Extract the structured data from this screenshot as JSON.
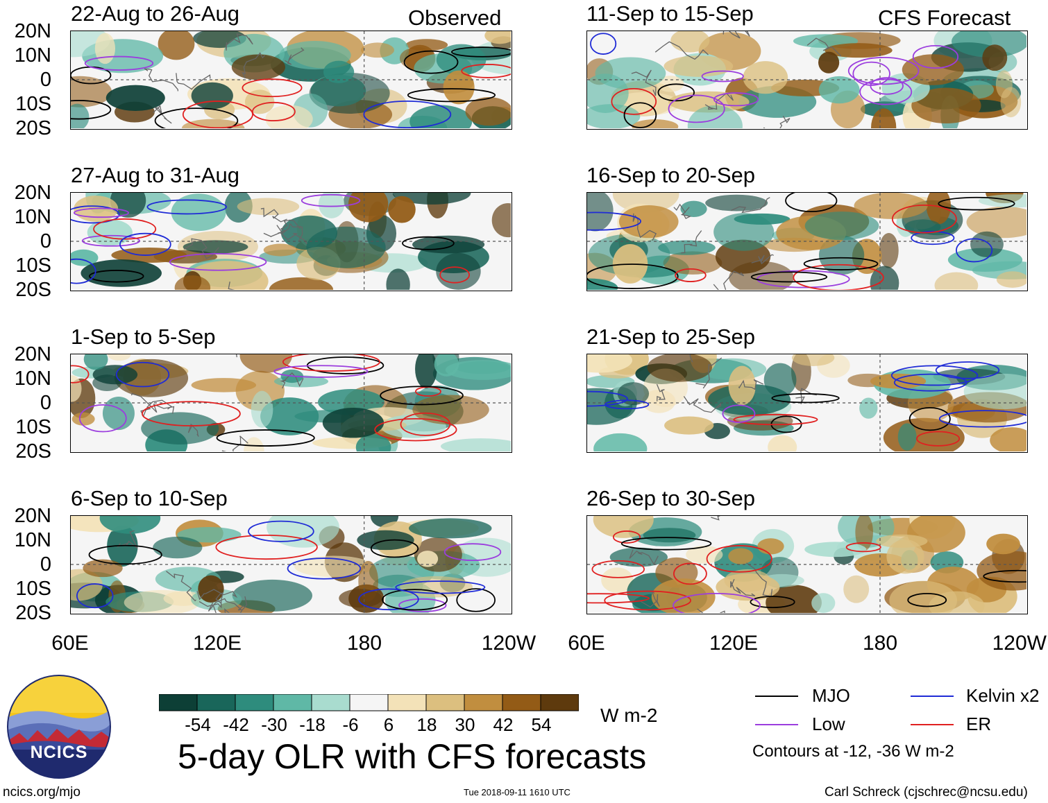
{
  "chart_data": {
    "type": "heatmap",
    "title": "5-day OLR with CFS forecasts",
    "units": "W m-2",
    "x_ticks": [
      "60E",
      "120E",
      "180",
      "120W"
    ],
    "y_ticks": [
      "20N",
      "10N",
      "0",
      "10S",
      "20S"
    ],
    "observed_label": "Observed",
    "forecast_label": "CFS Forecast",
    "panels": [
      {
        "period": "22-Aug to 26-Aug",
        "source": "observed"
      },
      {
        "period": "27-Aug to 31-Aug",
        "source": "observed"
      },
      {
        "period": "1-Sep to 5-Sep",
        "source": "observed"
      },
      {
        "period": "6-Sep to 10-Sep",
        "source": "observed"
      },
      {
        "period": "11-Sep to 15-Sep",
        "source": "forecast"
      },
      {
        "period": "16-Sep to 20-Sep",
        "source": "forecast"
      },
      {
        "period": "21-Sep to 25-Sep",
        "source": "forecast"
      },
      {
        "period": "26-Sep to 30-Sep",
        "source": "forecast"
      }
    ],
    "colorbar": {
      "labels": [
        "-54",
        "-42",
        "-30",
        "-18",
        "-6",
        "6",
        "18",
        "30",
        "42",
        "54"
      ],
      "colors": [
        "#0d3f36",
        "#19665a",
        "#2e8c7d",
        "#5fb8a6",
        "#a9dccf",
        "#f5f5f5",
        "#f3e2b8",
        "#dcbf7f",
        "#c18e3f",
        "#935b16",
        "#5e3a0d"
      ]
    },
    "legend": [
      {
        "label": "MJO",
        "color": "#000000"
      },
      {
        "label": "Kelvin x2",
        "color": "#1f2bd6"
      },
      {
        "label": "Low",
        "color": "#9b3dde"
      },
      {
        "label": "ER",
        "color": "#e02020"
      }
    ],
    "contours_note": "Contours at -12, -36 W m-2"
  },
  "footer": {
    "logo_text": "NCICS",
    "website": "ncics.org/mjo",
    "timestamp": "Tue 2018-09-11 1610 UTC",
    "author": "Carl Schreck (cjschrec@ncsu.edu)"
  }
}
